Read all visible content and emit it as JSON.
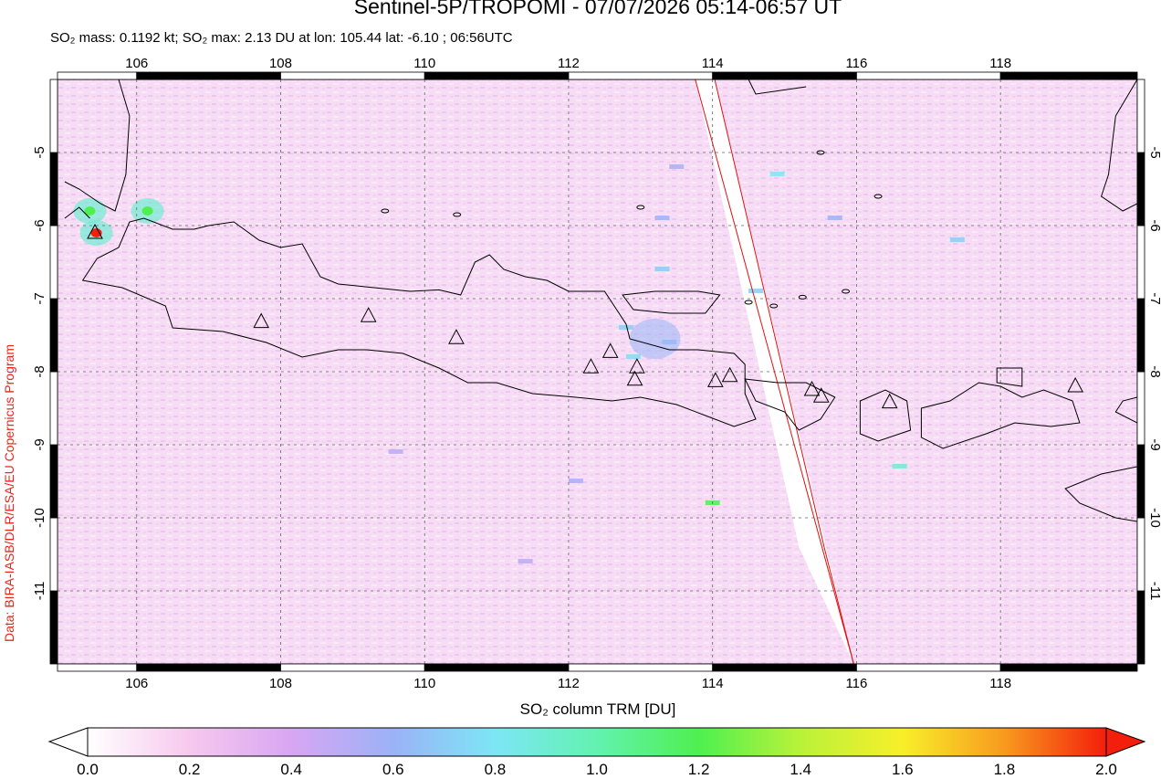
{
  "header": {
    "title": "Sentinel-5P/TROPOMI - 07/07/2026 05:14-06:57 UT",
    "subtitle": "SO₂ mass: 0.1192 kt; SO₂ max: 2.13 DU at lon: 105.44 lat: -6.10 ; 06:56UTC"
  },
  "credit": "Data: BIRA-IASB/DLR/ESA/EU Copernicus Program",
  "map": {
    "lon_range": [
      104.9,
      119.9
    ],
    "lat_range": [
      -12.0,
      -4.0
    ],
    "lon_ticks": [
      "106",
      "108",
      "110",
      "112",
      "114",
      "116",
      "118"
    ],
    "lat_ticks": [
      "-5",
      "-6",
      "-7",
      "-8",
      "-9",
      "-10",
      "-11"
    ],
    "grid": "dashed",
    "background_color": "#f6d9f4",
    "coastline_color": "#000000",
    "swath_edge_color": "#e01010",
    "volcano_marker": "triangle",
    "so2_hotspots": [
      {
        "lon": 105.44,
        "lat": -6.1,
        "level": "max"
      },
      {
        "lon": 105.35,
        "lat": -5.8,
        "level": "medium"
      },
      {
        "lon": 106.15,
        "lat": -5.8,
        "level": "medium"
      }
    ],
    "volcanoes": [
      {
        "lon": 105.42,
        "lat": -6.1
      },
      {
        "lon": 107.73,
        "lat": -7.32
      },
      {
        "lon": 109.22,
        "lat": -7.24
      },
      {
        "lon": 110.44,
        "lat": -7.54
      },
      {
        "lon": 112.31,
        "lat": -7.94
      },
      {
        "lon": 112.58,
        "lat": -7.73
      },
      {
        "lon": 112.95,
        "lat": -7.94
      },
      {
        "lon": 112.92,
        "lat": -8.11
      },
      {
        "lon": 114.04,
        "lat": -8.13
      },
      {
        "lon": 114.24,
        "lat": -8.06
      },
      {
        "lon": 115.38,
        "lat": -8.25
      },
      {
        "lon": 115.51,
        "lat": -8.34
      },
      {
        "lon": 116.46,
        "lat": -8.42
      },
      {
        "lon": 119.04,
        "lat": -8.2
      }
    ]
  },
  "colorbar": {
    "title": "SO₂ column TRM [DU]",
    "min": 0.0,
    "max": 2.0,
    "labels": [
      "0.0",
      "0.2",
      "0.4",
      "0.6",
      "0.8",
      "1.0",
      "1.2",
      "1.4",
      "1.6",
      "1.8",
      "2.0"
    ],
    "colors": [
      "#ffffff",
      "#f7c8ee",
      "#d8a6f3",
      "#9bb2f7",
      "#7de6f5",
      "#62f2b0",
      "#4ef050",
      "#b9f23a",
      "#f8ef2a",
      "#f89a1e",
      "#f41e0c"
    ],
    "over_color": "#f41e0c",
    "under_color": "#ffffff"
  }
}
